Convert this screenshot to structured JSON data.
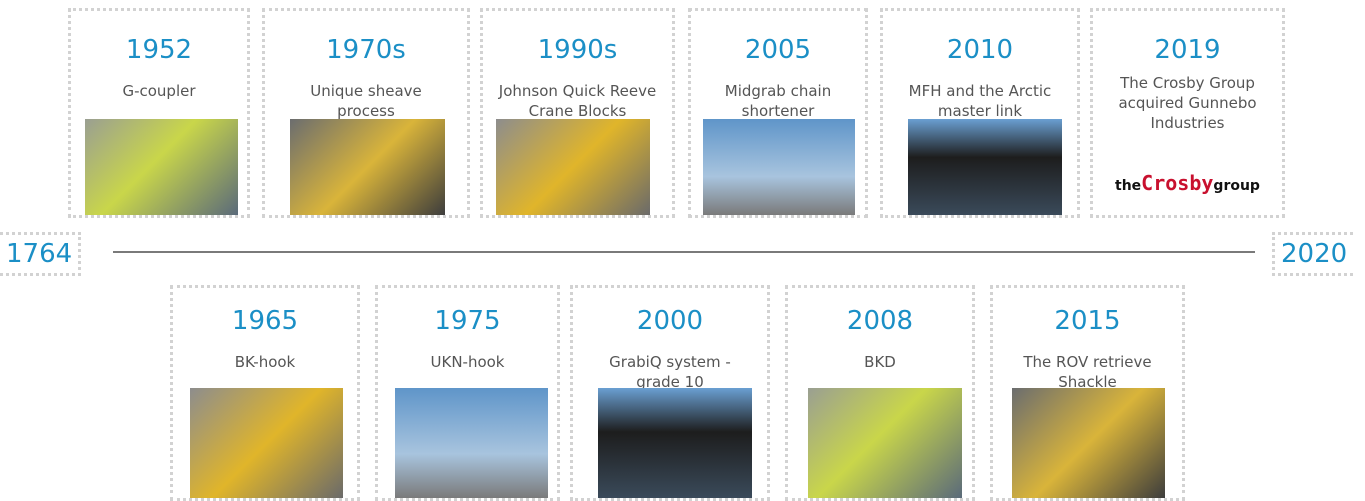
{
  "start_year": "1764",
  "end_year": "2020",
  "top": [
    {
      "year": "1952",
      "description": [
        "G-coupler"
      ]
    },
    {
      "year": "1970s",
      "description": [
        "Unique sheave",
        "process"
      ]
    },
    {
      "year": "1990s",
      "description": [
        "Johnson Quick Reeve",
        "Crane Blocks"
      ]
    },
    {
      "year": "2005",
      "description": [
        "Midgrab chain",
        "shortener"
      ]
    },
    {
      "year": "2010",
      "description": [
        "MFH and the Arctic",
        "master link"
      ]
    },
    {
      "year": "2019",
      "description": [
        "The Crosby Group",
        "acquired Gunnebo",
        "Industries"
      ],
      "logo": [
        "the",
        "Crosby",
        "group"
      ]
    }
  ],
  "bottom": [
    {
      "year": "1965",
      "description": [
        "BK-hook"
      ]
    },
    {
      "year": "1975",
      "description": [
        "UKN-hook"
      ]
    },
    {
      "year": "2000",
      "description": [
        "GrabiQ system -",
        "grade 10"
      ]
    },
    {
      "year": "2008",
      "description": [
        "BKD"
      ]
    },
    {
      "year": "2015",
      "description": [
        "The ROV retrieve",
        "Shackle"
      ]
    }
  ]
}
